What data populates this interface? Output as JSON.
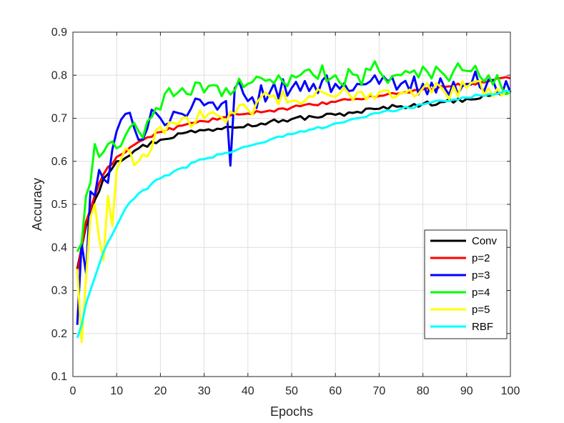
{
  "chart_data": {
    "type": "line",
    "title": "",
    "xlabel": "Epochs",
    "ylabel": "Accuracy",
    "xlim": [
      0,
      100
    ],
    "ylim": [
      0.1,
      0.9
    ],
    "xticks": [
      0,
      10,
      20,
      30,
      40,
      50,
      60,
      70,
      80,
      90,
      100
    ],
    "yticks": [
      0.1,
      0.2,
      0.3,
      0.4,
      0.5,
      0.6,
      0.7,
      0.8,
      0.9
    ],
    "xtick_labels": [
      "0",
      "10",
      "20",
      "30",
      "40",
      "50",
      "60",
      "70",
      "80",
      "90",
      "100"
    ],
    "ytick_labels": [
      "0.1",
      "0.2",
      "0.3",
      "0.4",
      "0.5",
      "0.6",
      "0.7",
      "0.8",
      "0.9"
    ],
    "grid": true,
    "legend_position": "bottom-right",
    "series": [
      {
        "name": "Conv",
        "color": "#000000",
        "anchors": [
          [
            1,
            0.35
          ],
          [
            2,
            0.4
          ],
          [
            3,
            0.45
          ],
          [
            5,
            0.51
          ],
          [
            7,
            0.56
          ],
          [
            10,
            0.6
          ],
          [
            15,
            0.63
          ],
          [
            20,
            0.65
          ],
          [
            25,
            0.665
          ],
          [
            30,
            0.672
          ],
          [
            35,
            0.68
          ],
          [
            40,
            0.686
          ],
          [
            45,
            0.692
          ],
          [
            50,
            0.698
          ],
          [
            55,
            0.703
          ],
          [
            60,
            0.708
          ],
          [
            65,
            0.715
          ],
          [
            70,
            0.722
          ],
          [
            75,
            0.728
          ],
          [
            80,
            0.733
          ],
          [
            85,
            0.738
          ],
          [
            90,
            0.745
          ],
          [
            95,
            0.752
          ],
          [
            100,
            0.76
          ]
        ],
        "noise": 0.006
      },
      {
        "name": "p=2",
        "color": "#ff0000",
        "anchors": [
          [
            1,
            0.34
          ],
          [
            2,
            0.4
          ],
          [
            3,
            0.46
          ],
          [
            5,
            0.52
          ],
          [
            7,
            0.57
          ],
          [
            10,
            0.61
          ],
          [
            15,
            0.645
          ],
          [
            20,
            0.668
          ],
          [
            25,
            0.683
          ],
          [
            30,
            0.693
          ],
          [
            35,
            0.703
          ],
          [
            40,
            0.711
          ],
          [
            45,
            0.718
          ],
          [
            50,
            0.725
          ],
          [
            55,
            0.731
          ],
          [
            60,
            0.738
          ],
          [
            65,
            0.745
          ],
          [
            70,
            0.752
          ],
          [
            75,
            0.759
          ],
          [
            80,
            0.767
          ],
          [
            85,
            0.773
          ],
          [
            90,
            0.779
          ],
          [
            95,
            0.786
          ],
          [
            100,
            0.793
          ]
        ],
        "noise": 0.004
      },
      {
        "name": "p=3",
        "color": "#0000ff",
        "anchors": [
          [
            1,
            0.22
          ],
          [
            2,
            0.41
          ],
          [
            3,
            0.34
          ],
          [
            4,
            0.53
          ],
          [
            5,
            0.52
          ],
          [
            6,
            0.58
          ],
          [
            8,
            0.55
          ],
          [
            10,
            0.67
          ],
          [
            12,
            0.71
          ],
          [
            15,
            0.65
          ],
          [
            18,
            0.72
          ],
          [
            20,
            0.7
          ],
          [
            25,
            0.71
          ],
          [
            30,
            0.73
          ],
          [
            33,
            0.72
          ],
          [
            35,
            0.74
          ],
          [
            36,
            0.59
          ],
          [
            37,
            0.77
          ],
          [
            40,
            0.74
          ],
          [
            45,
            0.76
          ],
          [
            50,
            0.77
          ],
          [
            55,
            0.78
          ],
          [
            60,
            0.78
          ],
          [
            65,
            0.78
          ],
          [
            70,
            0.78
          ],
          [
            75,
            0.78
          ],
          [
            80,
            0.78
          ],
          [
            85,
            0.77
          ],
          [
            90,
            0.78
          ],
          [
            95,
            0.79
          ],
          [
            100,
            0.76
          ]
        ],
        "noise": 0.025
      },
      {
        "name": "p=4",
        "color": "#00ff00",
        "anchors": [
          [
            1,
            0.39
          ],
          [
            2,
            0.41
          ],
          [
            3,
            0.52
          ],
          [
            4,
            0.55
          ],
          [
            5,
            0.64
          ],
          [
            6,
            0.61
          ],
          [
            8,
            0.64
          ],
          [
            10,
            0.63
          ],
          [
            12,
            0.66
          ],
          [
            15,
            0.67
          ],
          [
            20,
            0.72
          ],
          [
            22,
            0.77
          ],
          [
            25,
            0.77
          ],
          [
            30,
            0.76
          ],
          [
            35,
            0.77
          ],
          [
            40,
            0.78
          ],
          [
            45,
            0.79
          ],
          [
            50,
            0.8
          ],
          [
            55,
            0.8
          ],
          [
            60,
            0.8
          ],
          [
            65,
            0.8
          ],
          [
            70,
            0.81
          ],
          [
            75,
            0.8
          ],
          [
            80,
            0.82
          ],
          [
            85,
            0.8
          ],
          [
            90,
            0.81
          ],
          [
            95,
            0.8
          ],
          [
            100,
            0.76
          ]
        ],
        "noise": 0.025
      },
      {
        "name": "p=5",
        "color": "#ffff00",
        "anchors": [
          [
            1,
            0.35
          ],
          [
            2,
            0.18
          ],
          [
            3,
            0.33
          ],
          [
            4,
            0.47
          ],
          [
            5,
            0.5
          ],
          [
            6,
            0.42
          ],
          [
            7,
            0.37
          ],
          [
            8,
            0.52
          ],
          [
            9,
            0.45
          ],
          [
            10,
            0.58
          ],
          [
            12,
            0.63
          ],
          [
            15,
            0.6
          ],
          [
            18,
            0.63
          ],
          [
            20,
            0.68
          ],
          [
            25,
            0.7
          ],
          [
            30,
            0.7
          ],
          [
            35,
            0.69
          ],
          [
            38,
            0.73
          ],
          [
            40,
            0.72
          ],
          [
            45,
            0.75
          ],
          [
            50,
            0.74
          ],
          [
            55,
            0.75
          ],
          [
            60,
            0.75
          ],
          [
            65,
            0.76
          ],
          [
            70,
            0.76
          ],
          [
            75,
            0.76
          ],
          [
            80,
            0.77
          ],
          [
            85,
            0.76
          ],
          [
            90,
            0.77
          ],
          [
            95,
            0.77
          ],
          [
            100,
            0.76
          ]
        ],
        "noise": 0.02
      },
      {
        "name": "RBF",
        "color": "#00ffff",
        "anchors": [
          [
            1,
            0.19
          ],
          [
            2,
            0.22
          ],
          [
            3,
            0.27
          ],
          [
            5,
            0.33
          ],
          [
            7,
            0.39
          ],
          [
            10,
            0.45
          ],
          [
            12,
            0.49
          ],
          [
            15,
            0.525
          ],
          [
            20,
            0.56
          ],
          [
            25,
            0.585
          ],
          [
            30,
            0.605
          ],
          [
            35,
            0.62
          ],
          [
            40,
            0.635
          ],
          [
            45,
            0.65
          ],
          [
            50,
            0.663
          ],
          [
            55,
            0.675
          ],
          [
            60,
            0.688
          ],
          [
            65,
            0.7
          ],
          [
            70,
            0.712
          ],
          [
            75,
            0.722
          ],
          [
            80,
            0.732
          ],
          [
            85,
            0.74
          ],
          [
            90,
            0.748
          ],
          [
            95,
            0.756
          ],
          [
            100,
            0.762
          ]
        ],
        "noise": 0.004
      }
    ]
  }
}
